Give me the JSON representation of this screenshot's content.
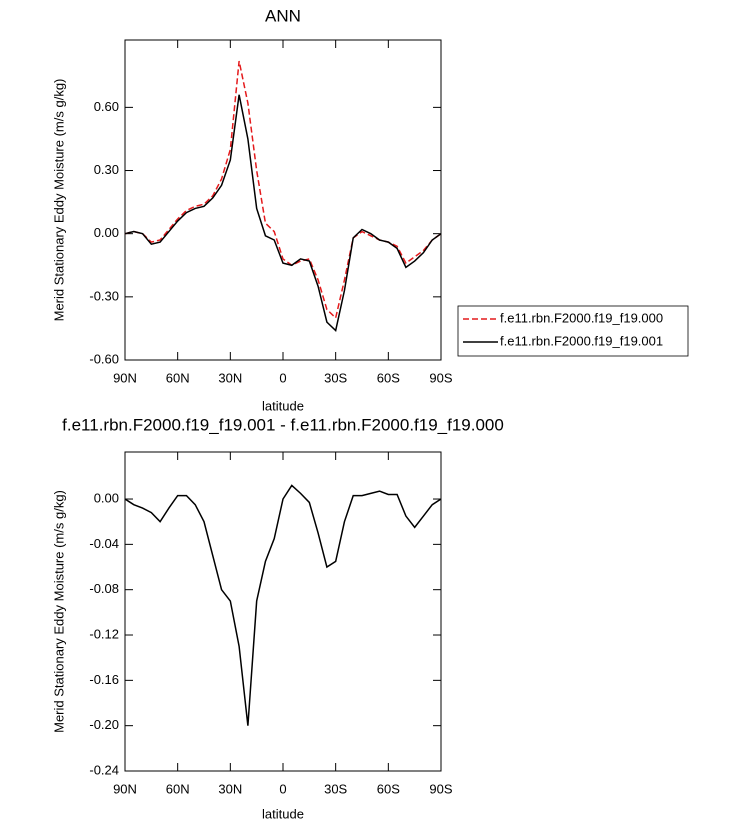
{
  "chart_data": [
    {
      "type": "line",
      "title": "ANN",
      "xlabel": "latitude",
      "ylabel": "Merid Stationary Eddy Moisture (m/s g/kg)",
      "x": [
        90,
        85,
        80,
        75,
        70,
        65,
        60,
        55,
        50,
        45,
        40,
        35,
        30,
        25,
        20,
        15,
        10,
        5,
        0,
        -5,
        -10,
        -15,
        -20,
        -25,
        -30,
        -35,
        -40,
        -45,
        -50,
        -55,
        -60,
        -65,
        -70,
        -75,
        -80,
        -85,
        -90
      ],
      "series": [
        {
          "name": "f.e11.rbn.F2000.f19_f19.000",
          "color": "#e41a1c",
          "dash": true,
          "values": [
            0,
            0.01,
            0,
            -0.04,
            -0.03,
            0.02,
            0.07,
            0.11,
            0.13,
            0.14,
            0.18,
            0.26,
            0.4,
            0.82,
            0.62,
            0.3,
            0.05,
            0.01,
            -0.12,
            -0.15,
            -0.13,
            -0.12,
            -0.22,
            -0.36,
            -0.4,
            -0.22,
            -0.02,
            0.01,
            -0.01,
            -0.03,
            -0.04,
            -0.06,
            -0.14,
            -0.11,
            -0.08,
            -0.03,
            0
          ]
        },
        {
          "name": "f.e11.rbn.F2000.f19_f19.001",
          "color": "#000000",
          "dash": false,
          "values": [
            0,
            0.01,
            0,
            -0.05,
            -0.04,
            0.01,
            0.06,
            0.1,
            0.12,
            0.13,
            0.17,
            0.23,
            0.35,
            0.66,
            0.45,
            0.12,
            -0.01,
            -0.03,
            -0.14,
            -0.15,
            -0.12,
            -0.13,
            -0.25,
            -0.42,
            -0.46,
            -0.27,
            -0.02,
            0.02,
            0,
            -0.03,
            -0.04,
            -0.07,
            -0.16,
            -0.13,
            -0.09,
            -0.03,
            0
          ]
        }
      ],
      "xlim": [
        90,
        -90
      ],
      "xticks": [
        {
          "value": 90,
          "label": "90N"
        },
        {
          "value": 60,
          "label": "60N"
        },
        {
          "value": 30,
          "label": "30N"
        },
        0,
        {
          "value": -30,
          "label": "30S"
        },
        {
          "value": -60,
          "label": "60S"
        },
        {
          "value": -90,
          "label": "90S"
        }
      ],
      "ylim": [
        -0.6,
        0.92
      ],
      "yticks": [
        {
          "value": -0.6,
          "label": "-0.60"
        },
        {
          "value": -0.3,
          "label": "-0.30"
        },
        {
          "value": 0,
          "label": "0.00"
        },
        {
          "value": 0.3,
          "label": "0.30"
        },
        {
          "value": 0.6,
          "label": "0.60"
        }
      ],
      "legend": "outside-right"
    },
    {
      "type": "line",
      "title": "f.e11.rbn.F2000.f19_f19.001 - f.e11.rbn.F2000.f19_f19.000",
      "xlabel": "latitude",
      "ylabel": "Merid Stationary Eddy Moisture (m/s g/kg)",
      "x": [
        90,
        85,
        80,
        75,
        70,
        65,
        60,
        55,
        50,
        45,
        40,
        35,
        30,
        25,
        20,
        15,
        10,
        5,
        0,
        -5,
        -10,
        -15,
        -20,
        -25,
        -30,
        -35,
        -40,
        -45,
        -50,
        -55,
        -60,
        -65,
        -70,
        -75,
        -80,
        -85,
        -90
      ],
      "series": [
        {
          "color": "#000000",
          "dash": false,
          "values": [
            0,
            -0.005,
            -0.008,
            -0.012,
            -0.02,
            -0.008,
            0.003,
            0.003,
            -0.005,
            -0.02,
            -0.05,
            -0.08,
            -0.09,
            -0.13,
            -0.2,
            -0.09,
            -0.055,
            -0.035,
            0,
            0.012,
            0.005,
            -0.003,
            -0.03,
            -0.06,
            -0.055,
            -0.02,
            0.003,
            0.003,
            0.005,
            0.007,
            0.004,
            0.004,
            -0.015,
            -0.025,
            -0.015,
            -0.005,
            0
          ]
        }
      ],
      "xlim": [
        90,
        -90
      ],
      "xticks": [
        {
          "value": 90,
          "label": "90N"
        },
        {
          "value": 60,
          "label": "60N"
        },
        {
          "value": 30,
          "label": "30N"
        },
        0,
        {
          "value": -30,
          "label": "30S"
        },
        {
          "value": -60,
          "label": "60S"
        },
        {
          "value": -90,
          "label": "90S"
        }
      ],
      "ylim": [
        -0.24,
        0.0415
      ],
      "yticks": [
        {
          "value": -0.24,
          "label": "-0.24"
        },
        {
          "value": -0.2,
          "label": "-0.20"
        },
        {
          "value": -0.16,
          "label": "-0.16"
        },
        {
          "value": -0.12,
          "label": "-0.12"
        },
        {
          "value": -0.08,
          "label": "-0.08"
        },
        {
          "value": -0.04,
          "label": "-0.04"
        },
        {
          "value": 0,
          "label": "0.00"
        }
      ]
    }
  ]
}
